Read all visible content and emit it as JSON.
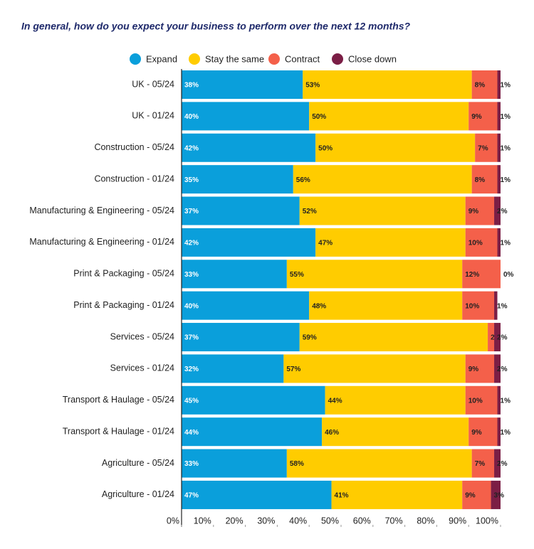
{
  "chart_data": {
    "type": "stacked-bar-horizontal",
    "title": "In general, how do you expect your business to perform over the next 12 months?",
    "categories": [
      "UK - 05/24",
      "UK - 01/24",
      "Construction - 05/24",
      "Construction - 01/24",
      "Manufacturing & Engineering - 05/24",
      "Manufacturing & Engineering - 01/24",
      "Print & Packaging - 05/24",
      "Print & Packaging - 01/24",
      "Services - 05/24",
      "Services - 01/24",
      "Transport & Haulage - 05/24",
      "Transport & Haulage - 01/24",
      "Agriculture - 05/24",
      "Agriculture - 01/24"
    ],
    "series": [
      {
        "name": "Expand",
        "color": "#0a9fdb",
        "values": [
          38,
          40,
          42,
          35,
          37,
          42,
          33,
          40,
          37,
          32,
          45,
          44,
          33,
          47
        ],
        "value_labels": [
          "38%",
          "40%",
          "42%",
          "35%",
          "37%",
          "42%",
          "33%",
          "40%",
          "37%",
          "32%",
          "45%",
          "44%",
          "33%",
          "47%"
        ]
      },
      {
        "name": "Stay the same",
        "color": "#ffcc00",
        "values": [
          53,
          50,
          50,
          56,
          52,
          47,
          55,
          48,
          59,
          57,
          44,
          46,
          58,
          41
        ],
        "value_labels": [
          "53%",
          "50%",
          "50%",
          "56%",
          "52%",
          "47%",
          "55%",
          "48%",
          "59%",
          "57%",
          "44%",
          "46%",
          "58%",
          "41%"
        ]
      },
      {
        "name": "Contract",
        "color": "#f4604a",
        "values": [
          8,
          9,
          7,
          8,
          9,
          10,
          12,
          10,
          2,
          9,
          10,
          9,
          7,
          9
        ],
        "value_labels": [
          "8%",
          "9%",
          "7%",
          "8%",
          "9%",
          "10%",
          "12%",
          "10%",
          "2%",
          "9%",
          "10%",
          "9%",
          "7%",
          "9%"
        ]
      },
      {
        "name": "Close down",
        "color": "#7b1e45",
        "values": [
          1,
          1,
          1,
          1,
          2,
          1,
          0,
          1,
          2,
          2,
          1,
          1,
          2,
          3
        ],
        "value_labels": [
          "1%",
          "1%",
          "1%",
          "1%",
          "2%",
          "1%",
          "0%",
          "1%",
          "2%",
          "2%",
          "1%",
          "1%",
          "2%",
          "3%"
        ]
      }
    ],
    "xlim": [
      0,
      100
    ],
    "xticks": [
      {
        "value": 0,
        "label": "0%"
      },
      {
        "value": 10,
        "label": "10%"
      },
      {
        "value": 20,
        "label": "20%"
      },
      {
        "value": 30,
        "label": "30%"
      },
      {
        "value": 40,
        "label": "40%"
      },
      {
        "value": 50,
        "label": "50%"
      },
      {
        "value": 60,
        "label": "60%"
      },
      {
        "value": 70,
        "label": "70%"
      },
      {
        "value": 80,
        "label": "80%"
      },
      {
        "value": 90,
        "label": "90%"
      },
      {
        "value": 100,
        "label": "100%"
      }
    ]
  }
}
